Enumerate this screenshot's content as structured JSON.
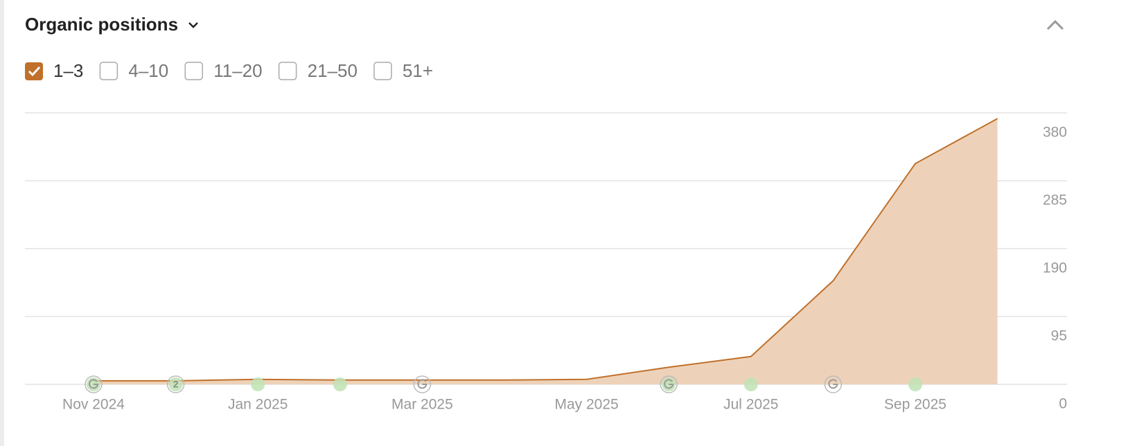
{
  "chart_data": {
    "type": "area",
    "title": "Organic positions",
    "categories": [
      "Nov 2024",
      null,
      "Jan 2025",
      null,
      "Mar 2025",
      null,
      "May 2025",
      null,
      "Jul 2025",
      null,
      "Sep 2025",
      null
    ],
    "series": [
      {
        "name": "1–3",
        "color": "#c0702a",
        "fill": "#edd2b9",
        "values": [
          5,
          5,
          7,
          6,
          6,
          6,
          7,
          24,
          39,
          145,
          309,
          372
        ]
      }
    ],
    "ylim": [
      0,
      380
    ],
    "yticks": [
      0,
      95,
      190,
      285,
      380
    ],
    "grid": true
  },
  "filters": [
    "4–10",
    "11–20",
    "21–50",
    "51+"
  ],
  "event_badge": "2"
}
